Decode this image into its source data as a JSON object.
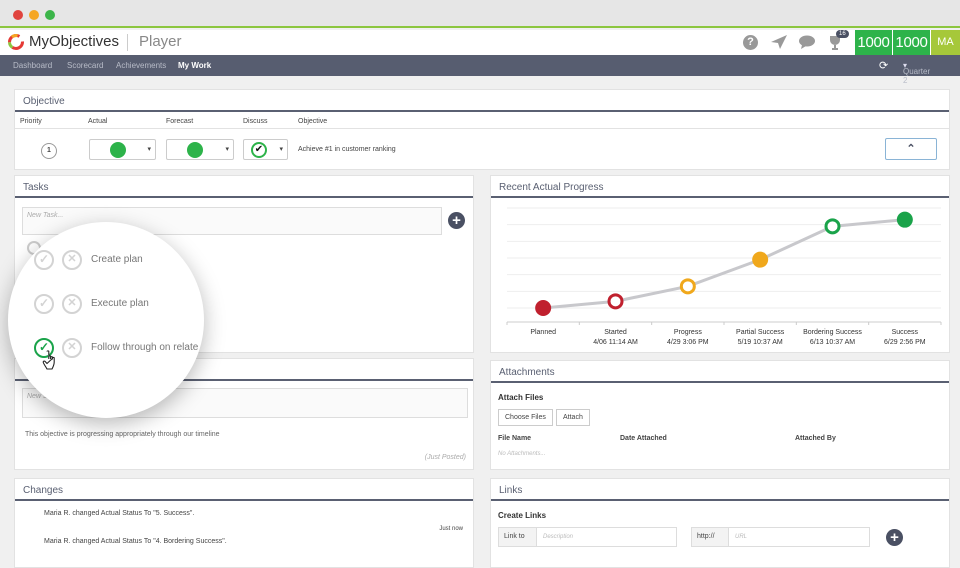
{
  "app": {
    "brand": "MyObjectives",
    "section": "Player"
  },
  "header_icons": [
    "help-icon",
    "send-icon",
    "chat-icon",
    "trophy-icon"
  ],
  "trophy_badge": "16",
  "scores": [
    "1000",
    "1000"
  ],
  "avatar": "MA",
  "nav": {
    "items": [
      "Dashboard",
      "Scorecard",
      "Achievements",
      "My Work"
    ],
    "active": "My Work",
    "quarter": "Quarter 2"
  },
  "objective": {
    "title": "Objective",
    "columns": [
      "Priority",
      "Actual",
      "Forecast",
      "Discuss",
      "Objective"
    ],
    "priority": "1",
    "actual_color": "#2db34a",
    "forecast_color": "#2db34a",
    "text": "Achieve #1 in customer ranking"
  },
  "tasks": {
    "title": "Tasks",
    "placeholder": "New Task...",
    "items": [
      {
        "label": "Create plan",
        "done": false
      },
      {
        "label": "Execute plan",
        "done": false
      },
      {
        "label": "Follow through on relate",
        "done": true
      }
    ]
  },
  "status": {
    "placeholder": "New St...",
    "text": "This objective is progressing appropriately through our timeline",
    "posted": "(Just Posted)"
  },
  "changes": {
    "title": "Changes",
    "items": [
      {
        "text": "Maria R. changed Actual Status To \"5. Success\".",
        "time": "Just now"
      },
      {
        "text": "Maria R. changed Actual Status To \"4. Bordering Success\"."
      }
    ]
  },
  "progress": {
    "title": "Recent Actual Progress"
  },
  "chart_data": {
    "type": "line",
    "title": "",
    "categories": [
      "Planned",
      "Started",
      "Progress",
      "Partial Success",
      "Bordering Success",
      "Success"
    ],
    "dates": [
      "",
      "4/06 11:14 AM",
      "4/29 3:06 PM",
      "5/19 10:37 AM",
      "6/13 10:37 AM",
      "6/29 2:56 PM"
    ],
    "values": [
      0,
      0.4,
      1.3,
      2.9,
      4.9,
      5.3
    ],
    "ylim": [
      0,
      6
    ],
    "grid": true,
    "markers": [
      {
        "color": "#c0202e",
        "filled": true
      },
      {
        "color": "#c0202e",
        "filled": false
      },
      {
        "color": "#f0a81c",
        "filled": false
      },
      {
        "color": "#f0a81c",
        "filled": true
      },
      {
        "color": "#1aa34a",
        "filled": false
      },
      {
        "color": "#1aa34a",
        "filled": true
      }
    ],
    "line_color": "#c8c8cc"
  },
  "attachments": {
    "title": "Attachments",
    "heading": "Attach Files",
    "choose": "Choose Files",
    "attach": "Attach",
    "columns": [
      "File Name",
      "Date Attached",
      "Attached By"
    ],
    "empty": "No Attachments..."
  },
  "links": {
    "title": "Links",
    "heading": "Create Links",
    "link_to": "Link to",
    "desc_placeholder": "Description",
    "http": "http://",
    "url_placeholder": "URL"
  }
}
